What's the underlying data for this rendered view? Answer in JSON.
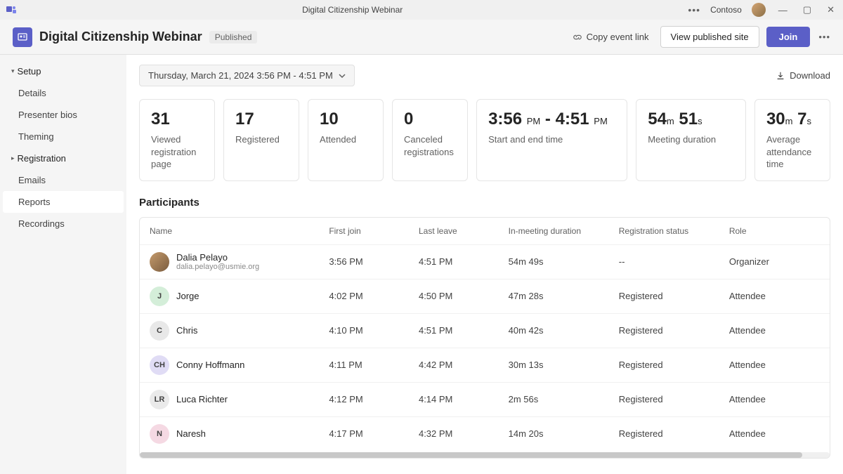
{
  "window": {
    "title": "Digital Citizenship Webinar",
    "org": "Contoso"
  },
  "toolbar": {
    "event_title": "Digital Citizenship Webinar",
    "status_badge": "Published",
    "copy_link_label": "Copy event link",
    "view_site_label": "View published site",
    "join_label": "Join"
  },
  "sidebar": {
    "groups": [
      {
        "label": "Setup",
        "expanded": true,
        "items": [
          "Details",
          "Presenter bios",
          "Theming"
        ]
      },
      {
        "label": "Registration",
        "expanded": false,
        "items": []
      }
    ],
    "flat_items": [
      "Emails",
      "Reports",
      "Recordings"
    ],
    "active_item": "Reports"
  },
  "filter": {
    "date_range": "Thursday, March 21, 2024 3:56 PM - 4:51 PM",
    "download_label": "Download"
  },
  "metrics": [
    {
      "value_html": "31",
      "label": "Viewed registration page",
      "size": "small"
    },
    {
      "value_html": "17",
      "label": "Registered",
      "size": "small"
    },
    {
      "value_html": "10",
      "label": "Attended",
      "size": "small"
    },
    {
      "value_html": "0",
      "label": "Canceled registrations",
      "size": "small"
    },
    {
      "value_html": "3:56 <span class='unit'>PM</span> - 4:51 <span class='unit'>PM</span>",
      "label": "Start and end time",
      "size": "med"
    },
    {
      "value_html": "54<span class='unit'>m</span> 51<span class='unit'>s</span>",
      "label": "Meeting duration",
      "size": "lg"
    },
    {
      "value_html": "30<span class='unit'>m</span> 7<span class='unit'>s</span>",
      "label": "Average attendance time",
      "size": "small"
    }
  ],
  "participants": {
    "title": "Participants",
    "columns": [
      "Name",
      "First join",
      "Last leave",
      "In-meeting duration",
      "Registration status",
      "Role"
    ],
    "rows": [
      {
        "name": "Dalia Pelayo",
        "email": "dalia.pelayo@usmie.org",
        "initials": "",
        "avatar_photo": true,
        "avatar_bg": "#c49a6c",
        "first_join": "3:56 PM",
        "last_leave": "4:51 PM",
        "duration": "54m 49s",
        "reg_status": "--",
        "role": "Organizer"
      },
      {
        "name": "Jorge",
        "email": "",
        "initials": "J",
        "avatar_photo": false,
        "avatar_bg": "#d4eed9",
        "first_join": "4:02 PM",
        "last_leave": "4:50 PM",
        "duration": "47m 28s",
        "reg_status": "Registered",
        "role": "Attendee"
      },
      {
        "name": "Chris",
        "email": "",
        "initials": "C",
        "avatar_photo": false,
        "avatar_bg": "#e8e8e8",
        "first_join": "4:10 PM",
        "last_leave": "4:51 PM",
        "duration": "40m 42s",
        "reg_status": "Registered",
        "role": "Attendee"
      },
      {
        "name": "Conny Hoffmann",
        "email": "",
        "initials": "CH",
        "avatar_photo": false,
        "avatar_bg": "#e0dcf5",
        "first_join": "4:11 PM",
        "last_leave": "4:42 PM",
        "duration": "30m 13s",
        "reg_status": "Registered",
        "role": "Attendee"
      },
      {
        "name": "Luca Richter",
        "email": "",
        "initials": "LR",
        "avatar_photo": false,
        "avatar_bg": "#eaeaea",
        "first_join": "4:12 PM",
        "last_leave": "4:14 PM",
        "duration": "2m 56s",
        "reg_status": "Registered",
        "role": "Attendee"
      },
      {
        "name": "Naresh",
        "email": "",
        "initials": "N",
        "avatar_photo": false,
        "avatar_bg": "#f5d9e3",
        "first_join": "4:17 PM",
        "last_leave": "4:32 PM",
        "duration": "14m 20s",
        "reg_status": "Registered",
        "role": "Attendee"
      }
    ]
  },
  "colors": {
    "primary": "#5b5fc7",
    "border": "#e5e5e5",
    "text_muted": "#616161"
  }
}
